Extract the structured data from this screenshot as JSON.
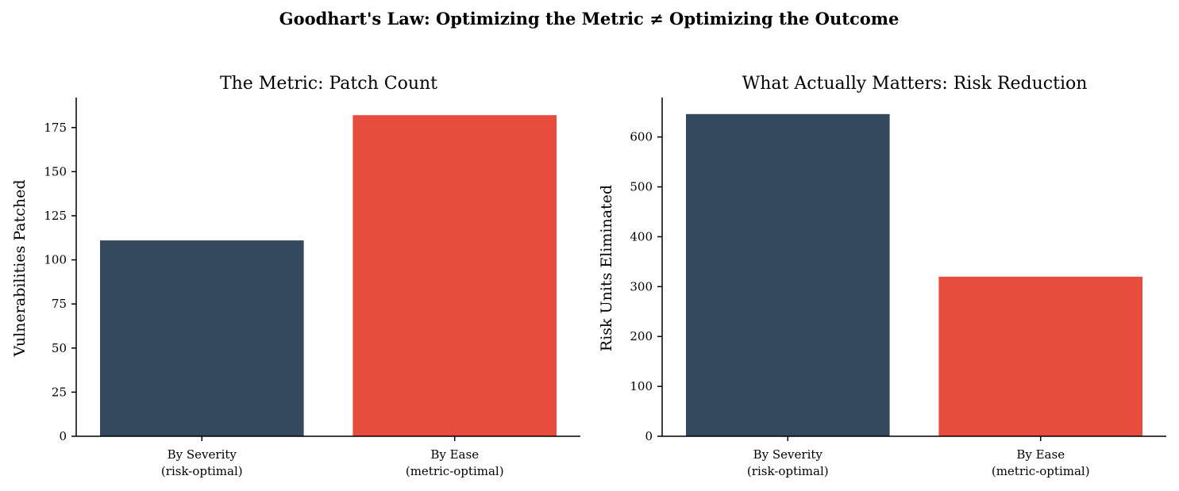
{
  "suptitle": "Goodhart's Law: Optimizing the Metric ≠ Optimizing the Outcome",
  "chart_data": [
    {
      "type": "bar",
      "title": "The Metric: Patch Count",
      "xlabel": "",
      "ylabel": "Vulnerabilities Patched",
      "categories": [
        "By Severity\n(risk-optimal)",
        "By Ease\n(metric-optimal)"
      ],
      "values": [
        111,
        182
      ],
      "colors": [
        "#34495e",
        "#e74c3c"
      ],
      "ylim": [
        0,
        192
      ],
      "yticks": [
        0,
        25,
        50,
        75,
        100,
        125,
        150,
        175
      ],
      "grid": false
    },
    {
      "type": "bar",
      "title": "What Actually Matters: Risk Reduction",
      "xlabel": "",
      "ylabel": "Risk Units Eliminated",
      "categories": [
        "By Severity\n(risk-optimal)",
        "By Ease\n(metric-optimal)"
      ],
      "values": [
        646,
        320
      ],
      "colors": [
        "#34495e",
        "#e74c3c"
      ],
      "ylim": [
        0,
        679
      ],
      "yticks": [
        0,
        100,
        200,
        300,
        400,
        500,
        600
      ],
      "grid": false
    }
  ]
}
